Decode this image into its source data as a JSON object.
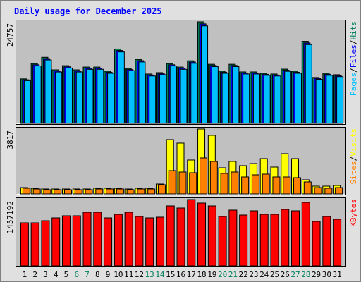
{
  "title": "Daily usage for December 2025",
  "legend_separator": "/",
  "chart_data": [
    {
      "type": "bar",
      "ylim": [
        0,
        24757
      ],
      "yticks": [
        24757
      ],
      "series": [
        {
          "name": "Pages",
          "color": "#00C0FF",
          "values": [
            10420,
            14002,
            15467,
            12536,
            13512,
            12536,
            13187,
            13187,
            12210,
            17419,
            12861,
            14977,
            11558,
            11884,
            14000,
            13187,
            14652,
            23767,
            13837,
            12210,
            13837,
            12047,
            12047,
            11722,
            11558,
            12698,
            12210,
            19210,
            10744,
            11722,
            11396
          ]
        },
        {
          "name": "Files",
          "color": "#0000FF",
          "values": [
            10637,
            14293,
            15789,
            12797,
            13794,
            12797,
            13461,
            13461,
            12465,
            17782,
            13129,
            15289,
            11799,
            12131,
            14291,
            13461,
            14957,
            24262,
            14126,
            12465,
            14126,
            12298,
            12298,
            11966,
            11799,
            12962,
            12465,
            19610,
            10968,
            11966,
            11634
          ]
        },
        {
          "name": "Hits",
          "color": "#00805C",
          "values": [
            10854,
            14585,
            16111,
            13058,
            14075,
            13058,
            13736,
            13736,
            12719,
            18145,
            13397,
            15601,
            12040,
            12379,
            14583,
            13736,
            15262,
            24757,
            14414,
            12719,
            14414,
            12549,
            12549,
            12210,
            12040,
            13227,
            12719,
            20010,
            11192,
            12210,
            11871
          ]
        }
      ]
    },
    {
      "type": "bar",
      "ylim": [
        0,
        3817
      ],
      "yticks": [
        3817
      ],
      "series": [
        {
          "name": "Sites",
          "color": "#FF8000",
          "values": [
            332,
            290,
            249,
            249,
            249,
            249,
            249,
            290,
            290,
            290,
            249,
            290,
            290,
            540,
            1370,
            1287,
            1245,
            2117,
            1909,
            1204,
            1287,
            996,
            1121,
            1162,
            996,
            996,
            955,
            706,
            373,
            332,
            373
          ]
        },
        {
          "name": "Visits",
          "color": "#FFFF00",
          "values": [
            373,
            332,
            290,
            290,
            290,
            290,
            290,
            332,
            332,
            332,
            290,
            332,
            332,
            581,
            3196,
            2988,
            1992,
            3817,
            3445,
            1536,
            1909,
            1660,
            1785,
            2075,
            1577,
            2366,
            2075,
            830,
            457,
            457,
            498
          ]
        }
      ]
    },
    {
      "type": "bar",
      "ylim": [
        0,
        1457192
      ],
      "yticks": [
        1457192
      ],
      "categories": [
        "1",
        "2",
        "3",
        "4",
        "5",
        "6",
        "7",
        "8",
        "9",
        "10",
        "11",
        "12",
        "13",
        "14",
        "15",
        "16",
        "17",
        "18",
        "19",
        "20",
        "21",
        "22",
        "23",
        "24",
        "25",
        "26",
        "27",
        "28",
        "29",
        "30",
        "31"
      ],
      "category_colors": [
        "#000000",
        "#000000",
        "#000000",
        "#000000",
        "#000000",
        "#00805C",
        "#00805C",
        "#000000",
        "#000000",
        "#000000",
        "#000000",
        "#000000",
        "#00805C",
        "#00805C",
        "#000000",
        "#000000",
        "#000000",
        "#000000",
        "#000000",
        "#00805C",
        "#00805C",
        "#000000",
        "#000000",
        "#000000",
        "#000000",
        "#000000",
        "#00805C",
        "#00805C",
        "#000000",
        "#000000",
        "#000000"
      ],
      "series": [
        {
          "name": "KBytes",
          "color": "#FF0000",
          "values": [
            945622,
            945622,
            992128,
            1054136,
            1100642,
            1100642,
            1178152,
            1178152,
            1054136,
            1131646,
            1178152,
            1085140,
            1054136,
            1069638,
            1317670,
            1271164,
            1457192,
            1379678,
            1317670,
            1085140,
            1224658,
            1116144,
            1209156,
            1131646,
            1131646,
            1240160,
            1209156,
            1395180,
            976626,
            1085140,
            1023132
          ]
        }
      ]
    }
  ]
}
